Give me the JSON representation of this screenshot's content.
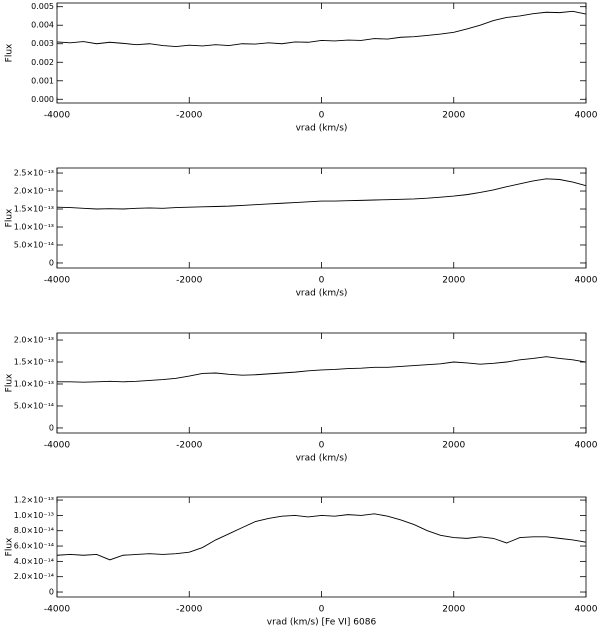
{
  "chart_data": [
    {
      "type": "line",
      "ylabel": "Flux",
      "xlabel": "vrad (km/s)",
      "color": "#000000",
      "grid": false,
      "xlim": [
        -4000,
        4000
      ],
      "xticks": [
        -4000,
        -2000,
        0,
        2000,
        4000
      ],
      "ylim": [
        -0.0002,
        0.0052
      ],
      "yticks": [
        {
          "value": 0,
          "label": "0.000"
        },
        {
          "value": 0.001,
          "label": "0.001"
        },
        {
          "value": 0.002,
          "label": "0.002"
        },
        {
          "value": 0.003,
          "label": "0.003"
        },
        {
          "value": 0.004,
          "label": "0.004"
        },
        {
          "value": 0.005,
          "label": "0.005"
        }
      ],
      "x": [
        -4000,
        -3800,
        -3600,
        -3400,
        -3200,
        -3000,
        -2800,
        -2600,
        -2400,
        -2200,
        -2000,
        -1800,
        -1600,
        -1400,
        -1200,
        -1000,
        -800,
        -600,
        -400,
        -200,
        0,
        200,
        400,
        600,
        800,
        1000,
        1200,
        1400,
        1600,
        1800,
        2000,
        2200,
        2400,
        2600,
        2800,
        3000,
        3200,
        3400,
        3600,
        3800,
        4000
      ],
      "values": [
        0.0031,
        0.00305,
        0.00312,
        0.003,
        0.00308,
        0.00302,
        0.00295,
        0.003,
        0.0029,
        0.00285,
        0.00292,
        0.00288,
        0.00295,
        0.0029,
        0.003,
        0.00298,
        0.00305,
        0.003,
        0.0031,
        0.00308,
        0.00318,
        0.00315,
        0.0032,
        0.00318,
        0.00328,
        0.00325,
        0.00335,
        0.00338,
        0.00345,
        0.00352,
        0.00362,
        0.0038,
        0.004,
        0.00425,
        0.00442,
        0.0045,
        0.00462,
        0.0047,
        0.00468,
        0.00475,
        0.0046
      ]
    },
    {
      "type": "line",
      "ylabel": "Flux",
      "xlabel": "vrad (km/s)",
      "color": "#000000",
      "grid": false,
      "xlim": [
        -4000,
        4000
      ],
      "xticks": [
        -4000,
        -2000,
        0,
        2000,
        4000
      ],
      "ylim": [
        -1.4e-14,
        2.64e-13
      ],
      "yticks": [
        0,
        {
          "value": 5e-14,
          "label": "5.0×10⁻¹⁴"
        },
        {
          "value": 1e-13,
          "label": "1.0×10⁻¹³"
        },
        {
          "value": 1.5e-13,
          "label": "1.5×10⁻¹³"
        },
        {
          "value": 2e-13,
          "label": "2.0×10⁻¹³"
        },
        {
          "value": 2.5e-13,
          "label": "2.5×10⁻¹³"
        }
      ],
      "x": [
        -4000,
        -3800,
        -3600,
        -3400,
        -3200,
        -3000,
        -2800,
        -2600,
        -2400,
        -2200,
        -2000,
        -1800,
        -1600,
        -1400,
        -1200,
        -1000,
        -800,
        -600,
        -400,
        -200,
        0,
        200,
        400,
        600,
        800,
        1000,
        1200,
        1400,
        1600,
        1800,
        2000,
        2200,
        2400,
        2600,
        2800,
        3000,
        3200,
        3400,
        3600,
        3800,
        4000
      ],
      "values": [
        1.55e-13,
        1.54e-13,
        1.52e-13,
        1.5e-13,
        1.51e-13,
        1.5e-13,
        1.52e-13,
        1.53e-13,
        1.52e-13,
        1.54e-13,
        1.55e-13,
        1.56e-13,
        1.57e-13,
        1.58e-13,
        1.6e-13,
        1.62e-13,
        1.64e-13,
        1.66e-13,
        1.68e-13,
        1.7e-13,
        1.72e-13,
        1.72e-13,
        1.73e-13,
        1.74e-13,
        1.75e-13,
        1.76e-13,
        1.77e-13,
        1.78e-13,
        1.8e-13,
        1.83e-13,
        1.86e-13,
        1.9e-13,
        1.96e-13,
        2.03e-13,
        2.12e-13,
        2.2e-13,
        2.28e-13,
        2.34e-13,
        2.32e-13,
        2.25e-13,
        2.15e-13
      ]
    },
    {
      "type": "line",
      "ylabel": "Flux",
      "xlabel": "vrad (km/s)",
      "color": "#000000",
      "grid": false,
      "xlim": [
        -4000,
        4000
      ],
      "xticks": [
        -4000,
        -2000,
        0,
        2000,
        4000
      ],
      "ylim": [
        -1.15e-14,
        2.16e-13
      ],
      "yticks": [
        0,
        {
          "value": 5e-14,
          "label": "5.0×10⁻¹⁴"
        },
        {
          "value": 1e-13,
          "label": "1.0×10⁻¹³"
        },
        {
          "value": 1.5e-13,
          "label": "1.5×10⁻¹³"
        },
        {
          "value": 2e-13,
          "label": "2.0×10⁻¹³"
        }
      ],
      "x": [
        -4000,
        -3800,
        -3600,
        -3400,
        -3200,
        -3000,
        -2800,
        -2600,
        -2400,
        -2200,
        -2000,
        -1800,
        -1600,
        -1400,
        -1200,
        -1000,
        -800,
        -600,
        -400,
        -200,
        0,
        200,
        400,
        600,
        800,
        1000,
        1200,
        1400,
        1600,
        1800,
        2000,
        2200,
        2400,
        2600,
        2800,
        3000,
        3200,
        3400,
        3600,
        3800,
        4000
      ],
      "values": [
        1.05e-13,
        1.05e-13,
        1.04e-13,
        1.05e-13,
        1.06e-13,
        1.05e-13,
        1.06e-13,
        1.08e-13,
        1.1e-13,
        1.13e-13,
        1.18e-13,
        1.24e-13,
        1.25e-13,
        1.22e-13,
        1.2e-13,
        1.21e-13,
        1.23e-13,
        1.25e-13,
        1.27e-13,
        1.3e-13,
        1.32e-13,
        1.33e-13,
        1.35e-13,
        1.36e-13,
        1.38e-13,
        1.38e-13,
        1.4e-13,
        1.42e-13,
        1.44e-13,
        1.46e-13,
        1.5e-13,
        1.48e-13,
        1.45e-13,
        1.47e-13,
        1.5e-13,
        1.55e-13,
        1.58e-13,
        1.62e-13,
        1.58e-13,
        1.55e-13,
        1.5e-13
      ]
    },
    {
      "type": "line",
      "ylabel": "Flux",
      "xlabel": "vrad (km/s)  [Fe VI] 6086",
      "color": "#000000",
      "grid": false,
      "xlim": [
        -4000,
        4000
      ],
      "xticks": [
        -4000,
        -2000,
        0,
        2000,
        4000
      ],
      "ylim": [
        -6.5e-15,
        1.24e-13
      ],
      "yticks": [
        0,
        {
          "value": 2e-14,
          "label": "2.0×10⁻¹⁴"
        },
        {
          "value": 4e-14,
          "label": "4.0×10⁻¹⁴"
        },
        {
          "value": 6e-14,
          "label": "6.0×10⁻¹⁴"
        },
        {
          "value": 8e-14,
          "label": "8.0×10⁻¹⁴"
        },
        {
          "value": 1e-13,
          "label": "1.0×10⁻¹³"
        },
        {
          "value": 1.2e-13,
          "label": "1.2×10⁻¹³"
        }
      ],
      "x": [
        -4000,
        -3800,
        -3600,
        -3400,
        -3200,
        -3000,
        -2800,
        -2600,
        -2400,
        -2200,
        -2000,
        -1800,
        -1600,
        -1400,
        -1200,
        -1000,
        -800,
        -600,
        -400,
        -200,
        0,
        200,
        400,
        600,
        800,
        1000,
        1200,
        1400,
        1600,
        1800,
        2000,
        2200,
        2400,
        2600,
        2800,
        3000,
        3200,
        3400,
        3600,
        3800,
        4000
      ],
      "values": [
        4.8e-14,
        4.9e-14,
        4.8e-14,
        4.9e-14,
        4.2e-14,
        4.8e-14,
        4.9e-14,
        5e-14,
        4.9e-14,
        5e-14,
        5.2e-14,
        5.8e-14,
        6.8e-14,
        7.6e-14,
        8.4e-14,
        9.2e-14,
        9.6e-14,
        9.9e-14,
        1e-13,
        9.8e-14,
        1e-13,
        9.9e-14,
        1.01e-13,
        1e-13,
        1.02e-13,
        9.9e-14,
        9.4e-14,
        8.8e-14,
        8e-14,
        7.4e-14,
        7.1e-14,
        7e-14,
        7.2e-14,
        7e-14,
        6.4e-14,
        7.1e-14,
        7.2e-14,
        7.2e-14,
        7e-14,
        6.8e-14,
        6.5e-14
      ]
    }
  ]
}
